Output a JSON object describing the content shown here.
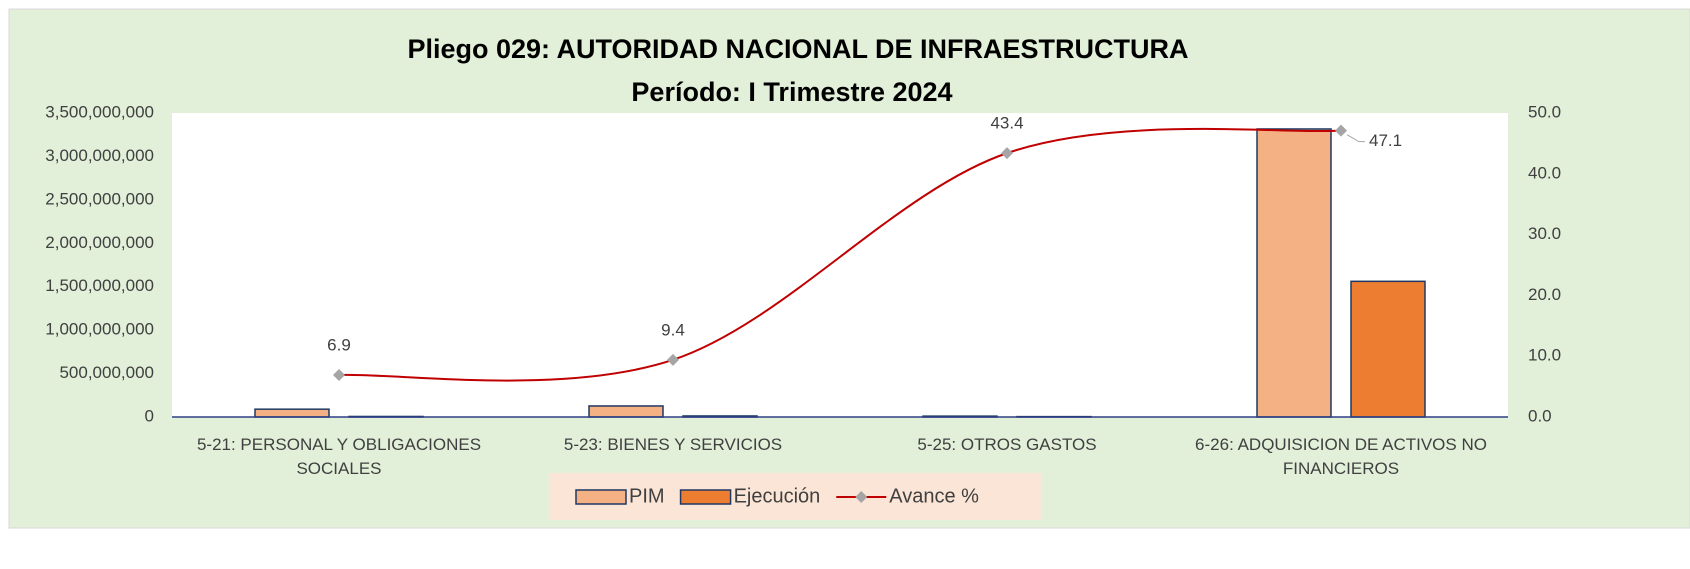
{
  "chart_data": {
    "type": "bar-line",
    "title": "Pliego 029: AUTORIDAD NACIONAL DE INFRAESTRUCTURA",
    "subtitle": "Período: I Trimestre 2024",
    "categories": [
      "5-21: PERSONAL Y OBLIGACIONES SOCIALES",
      "5-23: BIENES Y SERVICIOS",
      "5-25: OTROS GASTOS",
      "6-26: ADQUISICION DE ACTIVOS NO FINANCIEROS"
    ],
    "series": [
      {
        "name": "PIM",
        "type": "bar",
        "color": "#f4b183",
        "values": [
          90000000,
          127000000,
          10000000,
          3316000000
        ]
      },
      {
        "name": "Ejecución",
        "type": "bar",
        "color": "#ed7d31",
        "values": [
          6210000,
          11900000,
          4340000,
          1562000000
        ]
      },
      {
        "name": "Avance %",
        "type": "line",
        "axis": "y2",
        "color": "#c00000",
        "marker_color": "#a5a5a5",
        "values": [
          6.9,
          9.4,
          43.4,
          47.1
        ]
      }
    ],
    "ylim": [
      0,
      3500000000
    ],
    "yticks": [
      0,
      {
        "value": 500000000,
        "label": "500,000,000"
      },
      {
        "value": 1000000000,
        "label": "1,000,000,000"
      },
      {
        "value": 1500000000,
        "label": "1,500,000,000"
      },
      {
        "value": 2000000000,
        "label": "2,000,000,000"
      },
      {
        "value": 2500000000,
        "label": "2,500,000,000"
      },
      {
        "value": 3000000000,
        "label": "3,000,000,000"
      },
      {
        "value": 3500000000,
        "label": "3,500,000,000"
      }
    ],
    "y2lim": [
      0,
      50
    ],
    "y2ticks": [
      {
        "value": 0,
        "label": "0.0"
      },
      {
        "value": 10,
        "label": "10.0"
      },
      {
        "value": 20,
        "label": "20.0"
      },
      {
        "value": 30,
        "label": "30.0"
      },
      {
        "value": 40,
        "label": "40.0"
      },
      {
        "value": 50,
        "label": "50.0"
      }
    ],
    "legend": "bottom",
    "smooth": true
  }
}
